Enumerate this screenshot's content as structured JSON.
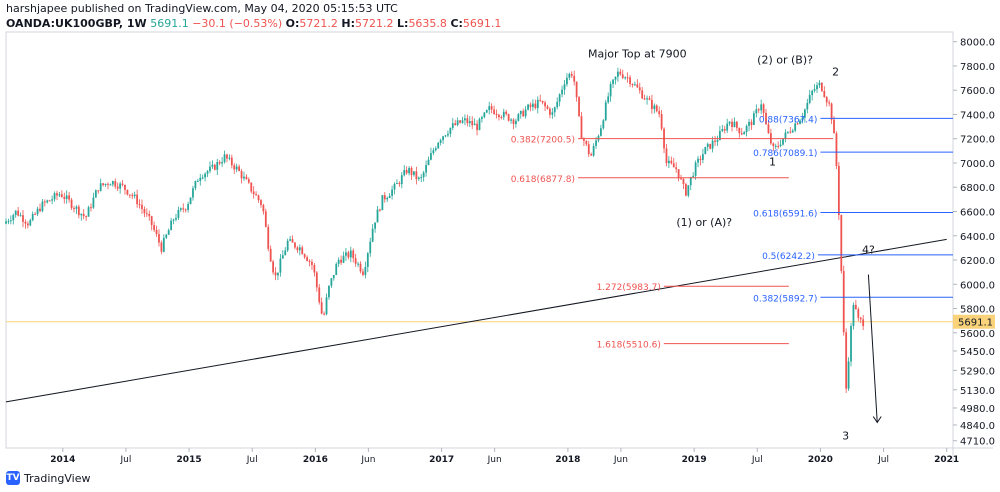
{
  "header": {
    "publisher": "harshjapee published on TradingView.com, May 04, 2020 05:15:53 UTC",
    "symbol": "OANDA:UK100GBP, 1W",
    "last": "5691.1",
    "change": "−30.1 (−0.53%)",
    "o_label": "O:",
    "o": "5721.2",
    "h_label": "H:",
    "h": "5721.2",
    "l_label": "L:",
    "l": "5635.8",
    "c_label": "C:",
    "c": "5691.1"
  },
  "brand": {
    "name": "TradingView",
    "logo_text": "TV"
  },
  "chart_data": {
    "type": "candlestick",
    "y_ticks": [
      8000.0,
      7800.0,
      7600.0,
      7400.0,
      7200.0,
      7000.0,
      6800.0,
      6600.0,
      6400.0,
      6200.0,
      6000.0,
      5800.0,
      5600.0,
      5450.0,
      5290.0,
      5130.0,
      4980.0,
      4840.0,
      4710.0
    ],
    "x_ticks": [
      {
        "label": "2014",
        "t": 2014.0
      },
      {
        "label": "Jul",
        "t": 2014.5
      },
      {
        "label": "2015",
        "t": 2015.0
      },
      {
        "label": "Jul",
        "t": 2015.5
      },
      {
        "label": "2016",
        "t": 2016.0
      },
      {
        "label": "Jun",
        "t": 2016.42
      },
      {
        "label": "2017",
        "t": 2017.0
      },
      {
        "label": "Jun",
        "t": 2017.42
      },
      {
        "label": "2018",
        "t": 2018.0
      },
      {
        "label": "Jun",
        "t": 2018.42
      },
      {
        "label": "2019",
        "t": 2019.0
      },
      {
        "label": "Jul",
        "t": 2019.5
      },
      {
        "label": "2020",
        "t": 2020.0
      },
      {
        "label": "Jul",
        "t": 2020.5
      },
      {
        "label": "2021",
        "t": 2021.0
      }
    ],
    "last_price": {
      "label": "5691.1",
      "value": 5691.1
    },
    "price_path": [
      [
        2013.55,
        6500
      ],
      [
        2013.65,
        6600
      ],
      [
        2013.75,
        6500
      ],
      [
        2013.85,
        6650
      ],
      [
        2014.0,
        6750
      ],
      [
        2014.1,
        6650
      ],
      [
        2014.2,
        6550
      ],
      [
        2014.3,
        6800
      ],
      [
        2014.4,
        6850
      ],
      [
        2014.5,
        6800
      ],
      [
        2014.6,
        6700
      ],
      [
        2014.72,
        6500
      ],
      [
        2014.8,
        6300
      ],
      [
        2014.9,
        6550
      ],
      [
        2015.0,
        6650
      ],
      [
        2015.1,
        6900
      ],
      [
        2015.2,
        6950
      ],
      [
        2015.3,
        7050
      ],
      [
        2015.4,
        6950
      ],
      [
        2015.5,
        6800
      ],
      [
        2015.6,
        6650
      ],
      [
        2015.65,
        6300
      ],
      [
        2015.7,
        6050
      ],
      [
        2015.8,
        6350
      ],
      [
        2015.9,
        6300
      ],
      [
        2016.0,
        6150
      ],
      [
        2016.08,
        5700
      ],
      [
        2016.12,
        5950
      ],
      [
        2016.2,
        6200
      ],
      [
        2016.3,
        6250
      ],
      [
        2016.4,
        6100
      ],
      [
        2016.48,
        6500
      ],
      [
        2016.55,
        6700
      ],
      [
        2016.65,
        6800
      ],
      [
        2016.75,
        6950
      ],
      [
        2016.85,
        6850
      ],
      [
        2016.95,
        7100
      ],
      [
        2017.0,
        7200
      ],
      [
        2017.1,
        7300
      ],
      [
        2017.2,
        7350
      ],
      [
        2017.3,
        7300
      ],
      [
        2017.4,
        7450
      ],
      [
        2017.5,
        7400
      ],
      [
        2017.6,
        7350
      ],
      [
        2017.7,
        7450
      ],
      [
        2017.8,
        7500
      ],
      [
        2017.9,
        7400
      ],
      [
        2018.0,
        7700
      ],
      [
        2018.06,
        7750
      ],
      [
        2018.12,
        7250
      ],
      [
        2018.2,
        7050
      ],
      [
        2018.28,
        7300
      ],
      [
        2018.35,
        7600
      ],
      [
        2018.42,
        7750
      ],
      [
        2018.5,
        7700
      ],
      [
        2018.58,
        7600
      ],
      [
        2018.66,
        7500
      ],
      [
        2018.75,
        7400
      ],
      [
        2018.8,
        7000
      ],
      [
        2018.88,
        6950
      ],
      [
        2018.95,
        6750
      ],
      [
        2019.02,
        6950
      ],
      [
        2019.1,
        7100
      ],
      [
        2019.2,
        7200
      ],
      [
        2019.3,
        7350
      ],
      [
        2019.4,
        7250
      ],
      [
        2019.48,
        7350
      ],
      [
        2019.55,
        7500
      ],
      [
        2019.6,
        7250
      ],
      [
        2019.65,
        7100
      ],
      [
        2019.72,
        7200
      ],
      [
        2019.8,
        7300
      ],
      [
        2019.88,
        7400
      ],
      [
        2019.96,
        7600
      ],
      [
        2020.02,
        7650
      ],
      [
        2020.1,
        7450
      ],
      [
        2020.14,
        7100
      ],
      [
        2020.17,
        6500
      ],
      [
        2020.2,
        5700
      ],
      [
        2020.22,
        5100
      ],
      [
        2020.25,
        5500
      ],
      [
        2020.28,
        5850
      ],
      [
        2020.32,
        5700
      ],
      [
        2020.35,
        5690
      ]
    ],
    "fib_levels": [
      {
        "label": "0.382(7200.5)",
        "value": 7200.5,
        "color": "#ef5350",
        "t0": 2018.08,
        "t1": 2020.1
      },
      {
        "label": "0.618(6877.8)",
        "value": 6877.8,
        "color": "#ef5350",
        "t0": 2018.08,
        "t1": 2019.75
      },
      {
        "label": "0.88(7367.4)",
        "value": 7367.4,
        "color": "#2962ff",
        "t0": 2020.0,
        "t1": 2021.1
      },
      {
        "label": "0.786(7089.1)",
        "value": 7089.1,
        "color": "#2962ff",
        "t0": 2020.0,
        "t1": 2021.1
      },
      {
        "label": "0.618(6591.6)",
        "value": 6591.6,
        "color": "#2962ff",
        "t0": 2020.0,
        "t1": 2021.1
      },
      {
        "label": "0.5(6242.2)",
        "value": 6242.2,
        "color": "#2962ff",
        "t0": 2019.98,
        "t1": 2021.1
      },
      {
        "label": "0.382(5892.7)",
        "value": 5892.7,
        "color": "#2962ff",
        "t0": 2020.0,
        "t1": 2021.1
      },
      {
        "label": "1.272(5983.7)",
        "value": 5983.7,
        "color": "#ef5350",
        "t0": 2018.76,
        "t1": 2019.75
      },
      {
        "label": "1.618(5510.6)",
        "value": 5510.6,
        "color": "#ef5350",
        "t0": 2018.76,
        "t1": 2019.75
      }
    ],
    "trendline": {
      "t0": 2013.55,
      "v0": 5030,
      "t1": 2021.0,
      "v1": 6370
    },
    "projection_arrow": {
      "t0": 2020.38,
      "v0": 6080,
      "t1": 2020.45,
      "v1": 4860
    },
    "annotations": [
      {
        "text": "Major Top at 7900",
        "t": 2018.55,
        "v": 7870
      },
      {
        "text": "(2) or (B)?",
        "t": 2019.72,
        "v": 7820
      },
      {
        "text": "2",
        "t": 2020.12,
        "v": 7720
      },
      {
        "text": "1",
        "t": 2019.62,
        "v": 6980
      },
      {
        "text": "(1) or (A)?",
        "t": 2019.08,
        "v": 6480
      },
      {
        "text": "4?",
        "t": 2020.38,
        "v": 6255
      },
      {
        "text": "3",
        "t": 2020.2,
        "v": 4720
      }
    ]
  }
}
